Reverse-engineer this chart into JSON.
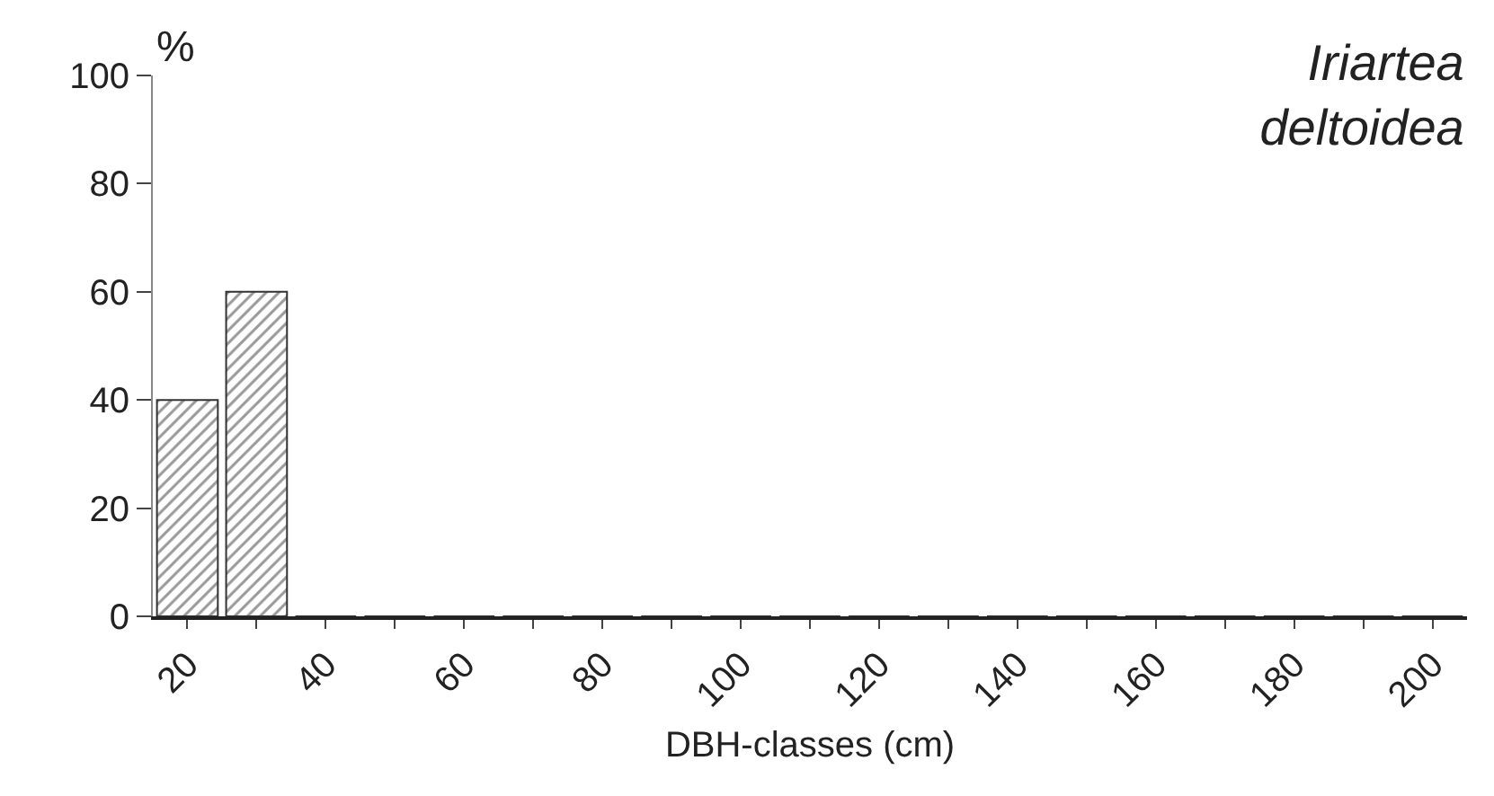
{
  "chart_data": {
    "type": "bar",
    "title": "Iriartea deltoidea",
    "xlabel": "DBH-classes (cm)",
    "ylabel": "%",
    "categories": [
      "20",
      null,
      "40",
      null,
      "60",
      null,
      "80",
      null,
      "100",
      null,
      "120",
      null,
      "140",
      null,
      "160",
      null,
      "180",
      null,
      "200"
    ],
    "values": [
      40,
      60,
      0,
      0,
      0,
      0,
      0,
      0,
      0,
      0,
      0,
      0,
      0,
      0,
      0,
      0,
      0,
      0,
      0
    ],
    "color": "#333333",
    "ylim": [
      0,
      100
    ],
    "yticks": [
      0,
      20,
      40,
      60,
      80,
      100
    ]
  }
}
